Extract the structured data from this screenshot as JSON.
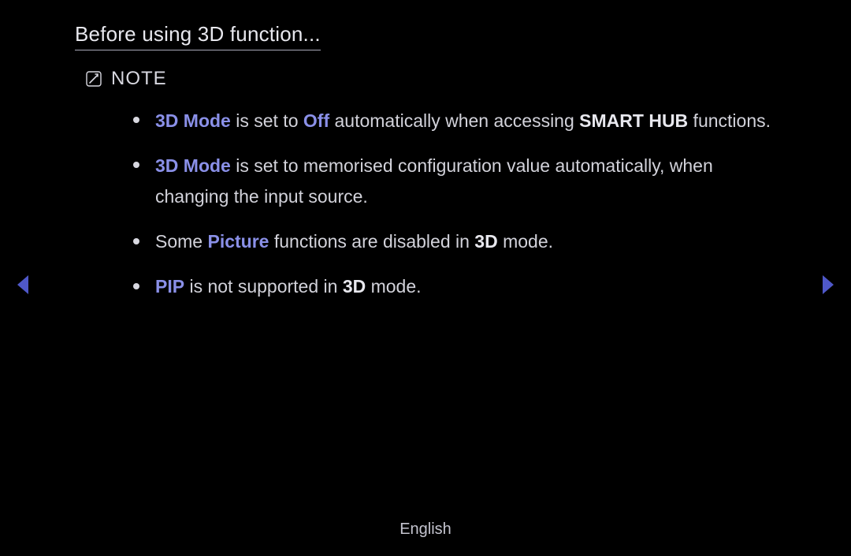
{
  "colors": {
    "background": "#000000",
    "body_text": "#d2d2da",
    "highlight": "#8a90e8",
    "bold_text": "#e8e8ee",
    "arrow": "#4f58c9",
    "title_underline": "#a9a9b8"
  },
  "title": "Before using 3D function...",
  "note": {
    "icon_name": "note-icon",
    "label": "NOTE"
  },
  "bullets": [
    {
      "parts": [
        {
          "text": "3D Mode",
          "style": "hl"
        },
        {
          "text": " is set to "
        },
        {
          "text": "Off",
          "style": "hl"
        },
        {
          "text": " automatically when accessing "
        },
        {
          "text": "SMART HUB",
          "style": "bold"
        },
        {
          "text": " functions."
        }
      ]
    },
    {
      "parts": [
        {
          "text": "3D Mode",
          "style": "hl"
        },
        {
          "text": " is set to memorised configuration value automatically, when changing the input source."
        }
      ]
    },
    {
      "parts": [
        {
          "text": "Some "
        },
        {
          "text": "Picture",
          "style": "hl"
        },
        {
          "text": " functions are disabled in "
        },
        {
          "text": "3D",
          "style": "bold"
        },
        {
          "text": " mode."
        }
      ]
    },
    {
      "parts": [
        {
          "text": "PIP",
          "style": "hl"
        },
        {
          "text": " is not supported in "
        },
        {
          "text": "3D",
          "style": "bold"
        },
        {
          "text": " mode."
        }
      ]
    }
  ],
  "footer": {
    "language": "English"
  },
  "nav": {
    "prev_name": "prev-page-arrow",
    "next_name": "next-page-arrow"
  }
}
